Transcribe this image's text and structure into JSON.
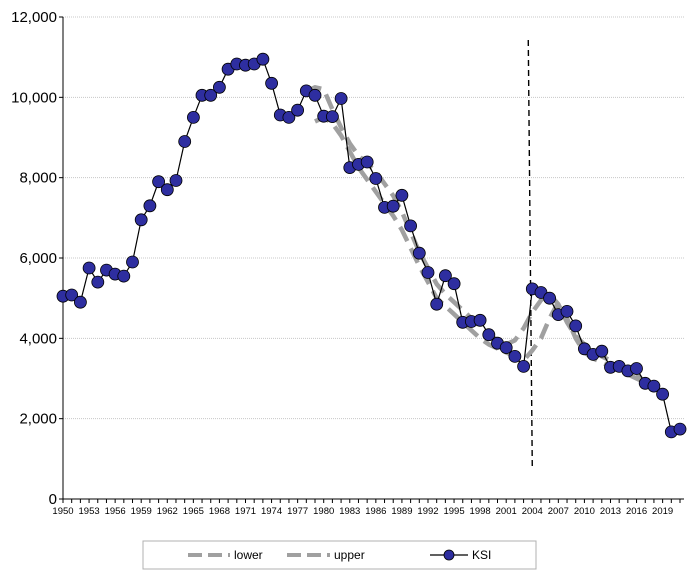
{
  "chart_data": {
    "type": "line",
    "x_range": [
      1950,
      2021
    ],
    "ylim": [
      0,
      12000
    ],
    "y_ticks": [
      {
        "value": 0,
        "label": "0"
      },
      {
        "value": 2000,
        "label": "2,000"
      },
      {
        "value": 4000,
        "label": "4,000"
      },
      {
        "value": 6000,
        "label": "6,000"
      },
      {
        "value": 8000,
        "label": "8,000"
      },
      {
        "value": 10000,
        "label": "10,000"
      },
      {
        "value": 12000,
        "label": "12,000"
      }
    ],
    "x_tick_labels": [
      "1950",
      "1953",
      "1956",
      "1959",
      "1962",
      "1965",
      "1968",
      "1971",
      "1974",
      "1977",
      "1980",
      "1983",
      "1986",
      "1989",
      "1992",
      "1995",
      "1998",
      "2001",
      "2004",
      "2007",
      "2010",
      "2013",
      "2016",
      "2019"
    ],
    "grid": "horizontal",
    "vertical_marker_year": 2004,
    "legend_position": "bottom",
    "series": [
      {
        "name": "lower",
        "style": "dashed",
        "color": "#a0a0a0",
        "x": [
          1979,
          1980,
          1981,
          1982,
          1983,
          1984,
          1985,
          1986,
          1987,
          1988,
          1989,
          1990,
          1991,
          1992,
          1993,
          1994,
          1995,
          1996,
          1997,
          1998,
          1999,
          2000,
          2001,
          2002,
          2003,
          2004,
          2005,
          2006,
          2007,
          2008,
          2009,
          2010,
          2011,
          2012,
          2013,
          2014,
          2015,
          2016,
          2017,
          2018
        ],
        "values": [
          9400,
          9500,
          9350,
          9050,
          8650,
          8250,
          7950,
          7650,
          7350,
          7050,
          6700,
          6250,
          5800,
          5400,
          5000,
          4800,
          4600,
          4400,
          4200,
          4000,
          3850,
          3750,
          3650,
          3550,
          3450,
          3700,
          4000,
          4500,
          4900,
          4500,
          4000,
          3650,
          3500,
          3400,
          3300,
          3200,
          3100,
          3000,
          2900,
          2700
        ]
      },
      {
        "name": "upper",
        "style": "dashed",
        "color": "#a0a0a0",
        "x": [
          1978,
          1979,
          1980,
          1981,
          1982,
          1983,
          1984,
          1985,
          1986,
          1987,
          1988,
          1989,
          1990,
          1991,
          1992,
          1993,
          1994,
          1995,
          1996,
          1997,
          1998,
          1999,
          2000,
          2001,
          2002,
          2003,
          2004,
          2005,
          2006,
          2007,
          2008,
          2009,
          2010,
          2011,
          2012,
          2013,
          2014,
          2015,
          2016,
          2017
        ],
        "values": [
          10150,
          10250,
          10200,
          9700,
          9250,
          8850,
          8550,
          8350,
          8150,
          7850,
          7550,
          7150,
          6650,
          6150,
          5750,
          5350,
          5100,
          4900,
          4700,
          4500,
          4300,
          4100,
          3950,
          3850,
          3950,
          4250,
          4650,
          4950,
          5100,
          4850,
          4400,
          4050,
          3850,
          3700,
          3550,
          3450,
          3350,
          3250,
          3150,
          2850
        ]
      },
      {
        "name": "KSI",
        "style": "solid-markers",
        "color": "#000000",
        "marker_color": "#2e2ea0",
        "x": [
          1950,
          1951,
          1952,
          1953,
          1954,
          1955,
          1956,
          1957,
          1958,
          1959,
          1960,
          1961,
          1962,
          1963,
          1964,
          1965,
          1966,
          1967,
          1968,
          1969,
          1970,
          1971,
          1972,
          1973,
          1974,
          1975,
          1976,
          1977,
          1978,
          1979,
          1980,
          1981,
          1982,
          1983,
          1984,
          1985,
          1986,
          1987,
          1988,
          1989,
          1990,
          1991,
          1992,
          1993,
          1994,
          1995,
          1996,
          1997,
          1998,
          1999,
          2000,
          2001,
          2002,
          2003,
          2004,
          2005,
          2006,
          2007,
          2008,
          2009,
          2010,
          2011,
          2012,
          2013,
          2014,
          2015,
          2016,
          2017,
          2018,
          2019,
          2020,
          2021
        ],
        "values": [
          5050,
          5080,
          4900,
          5750,
          5400,
          5700,
          5600,
          5550,
          5900,
          6950,
          7300,
          7900,
          7700,
          7930,
          8900,
          9500,
          10050,
          10050,
          10250,
          10700,
          10830,
          10800,
          10830,
          10950,
          10350,
          9560,
          9500,
          9680,
          10160,
          10050,
          9530,
          9520,
          9970,
          8250,
          8330,
          8390,
          7980,
          7260,
          7290,
          7560,
          6800,
          6120,
          5640,
          4850,
          5560,
          5360,
          4400,
          4420,
          4450,
          4090,
          3880,
          3770,
          3550,
          3300,
          5230,
          5140,
          5000,
          4590,
          4670,
          4310,
          3740,
          3600,
          3680,
          3280,
          3300,
          3190,
          3250,
          2880,
          2810,
          2610,
          1670,
          1740
        ]
      }
    ],
    "legend": {
      "items": [
        "lower",
        "upper",
        "KSI"
      ]
    }
  }
}
